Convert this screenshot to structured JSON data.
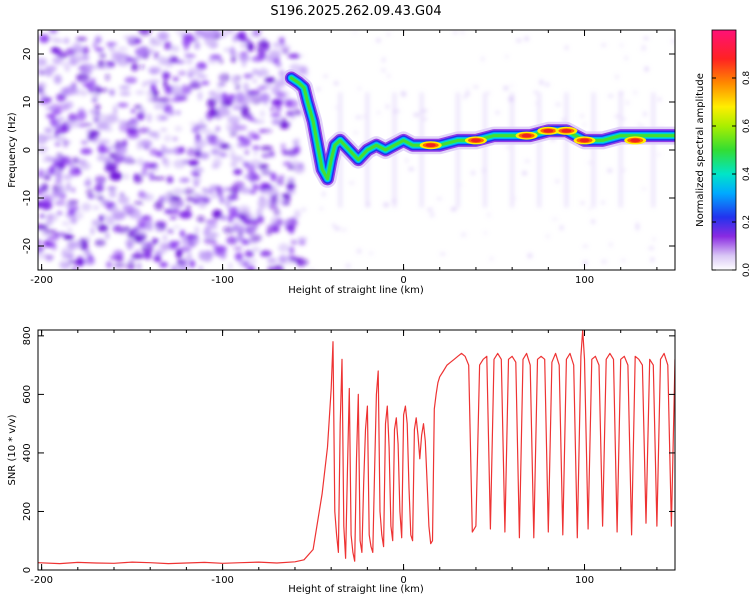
{
  "page_title": "S196.2025.262.09.43.G04",
  "chart_data": [
    {
      "type": "heatmap",
      "title": "S196.2025.262.09.43.G04",
      "xlabel": "Height of straight line (km)",
      "ylabel": "Frequency (Hz)",
      "xlim": [
        -202,
        150
      ],
      "ylim": [
        -25,
        25
      ],
      "x_ticks": [
        -200,
        -100,
        0,
        100
      ],
      "x_tick_labels": [
        "-200",
        "-100",
        "0",
        "100"
      ],
      "y_ticks": [
        -20,
        -10,
        0,
        10,
        20
      ],
      "y_tick_labels": [
        "-20",
        "-10",
        "0",
        "10",
        "20"
      ],
      "ridge": {
        "x": [
          -62,
          -58,
          -55,
          -53,
          -50,
          -48,
          -45,
          -42,
          -40,
          -38,
          -35,
          -30,
          -25,
          -20,
          -15,
          -10,
          -5,
          0,
          5,
          10,
          20,
          30,
          40,
          50,
          60,
          70,
          80,
          90,
          100,
          110,
          120,
          130,
          140,
          150
        ],
        "y": [
          15,
          14,
          13,
          10,
          6,
          2,
          -4,
          -6,
          -2,
          1,
          2,
          0,
          -2,
          0,
          1,
          0,
          1,
          2,
          1,
          1,
          1,
          2,
          2,
          3,
          3,
          3,
          4,
          4,
          2,
          2,
          3,
          3,
          3,
          3
        ]
      },
      "hot_spots": [
        {
          "x": 15,
          "y": 1
        },
        {
          "x": 40,
          "y": 2
        },
        {
          "x": 68,
          "y": 3
        },
        {
          "x": 80,
          "y": 4
        },
        {
          "x": 90,
          "y": 4
        },
        {
          "x": 100,
          "y": 2
        },
        {
          "x": 128,
          "y": 2
        }
      ],
      "noise_region": {
        "x_range": [
          -202,
          -60
        ],
        "y_range": [
          -25,
          25
        ]
      },
      "colorbar": {
        "label": "Normalized spectral amplitude",
        "range": [
          0,
          1
        ],
        "ticks": [
          0,
          0.2,
          0.4,
          0.6,
          0.8
        ],
        "tick_labels": [
          "0.0",
          "0.2",
          "0.4",
          "0.6",
          "0.8"
        ]
      }
    },
    {
      "type": "line",
      "xlabel": "Height of straight line (km)",
      "ylabel": "SNR (10 * v/v)",
      "xlim": [
        -202,
        150
      ],
      "ylim": [
        0,
        820
      ],
      "x_ticks": [
        -200,
        -100,
        0,
        100
      ],
      "x_tick_labels": [
        "-200",
        "-100",
        "0",
        "100"
      ],
      "y_ticks": [
        0,
        200,
        400,
        600,
        800
      ],
      "y_tick_labels": [
        "0",
        "200",
        "400",
        "600",
        "800"
      ],
      "series": [
        {
          "name": "SNR",
          "color": "#ee3333",
          "x": [
            -202,
            -190,
            -180,
            -170,
            -160,
            -150,
            -140,
            -130,
            -120,
            -110,
            -100,
            -90,
            -80,
            -70,
            -60,
            -55,
            -50,
            -45,
            -42,
            -40,
            -39,
            -38,
            -37,
            -36,
            -35,
            -34,
            -33,
            -32,
            -31,
            -30,
            -29,
            -28,
            -27,
            -26,
            -25,
            -24,
            -23,
            -22,
            -21,
            -20,
            -19,
            -18,
            -17,
            -16,
            -15,
            -14,
            -13,
            -12,
            -11,
            -10,
            -9,
            -8,
            -7,
            -6,
            -5,
            -4,
            -3,
            -2,
            -1,
            0,
            1,
            2,
            3,
            4,
            5,
            6,
            7,
            8,
            9,
            10,
            11,
            12,
            13,
            14,
            15,
            16,
            17,
            18,
            19,
            20,
            22,
            24,
            26,
            28,
            30,
            32,
            34,
            36,
            38,
            40,
            42,
            44,
            46,
            48,
            50,
            52,
            54,
            56,
            58,
            60,
            62,
            64,
            66,
            68,
            70,
            72,
            74,
            76,
            78,
            80,
            82,
            84,
            86,
            88,
            90,
            92,
            94,
            96,
            98,
            99,
            100,
            102,
            104,
            106,
            108,
            110,
            112,
            114,
            116,
            118,
            120,
            122,
            124,
            126,
            128,
            130,
            132,
            134,
            136,
            138,
            140,
            142,
            144,
            146,
            148,
            150
          ],
          "y": [
            25,
            22,
            26,
            24,
            23,
            27,
            25,
            22,
            24,
            26,
            23,
            25,
            27,
            24,
            28,
            35,
            70,
            260,
            420,
            620,
            780,
            200,
            120,
            60,
            500,
            720,
            150,
            40,
            350,
            620,
            120,
            60,
            30,
            380,
            600,
            100,
            60,
            300,
            480,
            560,
            120,
            80,
            60,
            340,
            600,
            680,
            200,
            120,
            80,
            500,
            560,
            420,
            150,
            100,
            480,
            520,
            430,
            200,
            110,
            530,
            560,
            500,
            280,
            120,
            100,
            480,
            520,
            460,
            380,
            460,
            500,
            440,
            300,
            150,
            90,
            100,
            550,
            600,
            640,
            660,
            680,
            700,
            710,
            720,
            730,
            740,
            730,
            700,
            130,
            150,
            700,
            720,
            730,
            140,
            720,
            740,
            720,
            130,
            720,
            730,
            710,
            110,
            720,
            740,
            700,
            110,
            720,
            730,
            720,
            130,
            710,
            740,
            700,
            120,
            720,
            740,
            700,
            110,
            730,
            820,
            720,
            140,
            720,
            730,
            700,
            150,
            720,
            740,
            720,
            130,
            720,
            730,
            700,
            120,
            730,
            720,
            700,
            160,
            720,
            700,
            150,
            720,
            740,
            700,
            150,
            720
          ]
        }
      ]
    }
  ]
}
